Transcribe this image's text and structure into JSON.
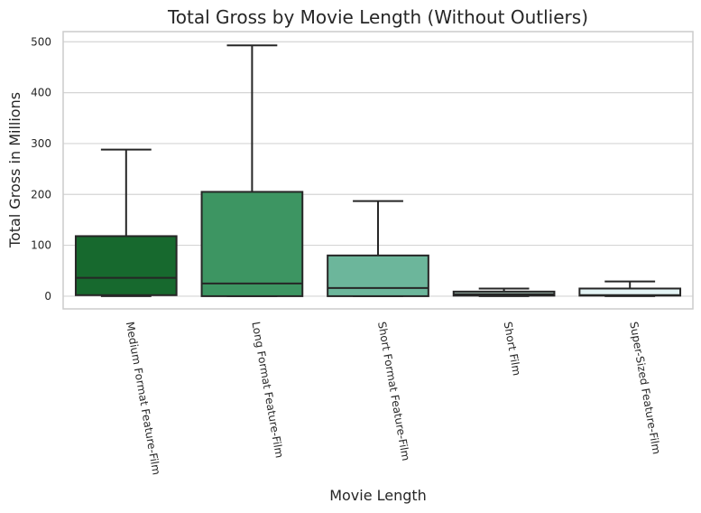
{
  "chart_data": {
    "type": "box",
    "title": "Total Gross by Movie Length (Without Outliers)",
    "xlabel": "Movie Length",
    "ylabel": "Total Gross in Millions",
    "ylim": [
      -25,
      520
    ],
    "yticks": [
      0,
      100,
      200,
      300,
      400,
      500
    ],
    "grid": true,
    "categories": [
      "Medium Format Feature-Film",
      "Long Format Feature-Film",
      "Short Format Feature-Film",
      "Short Film",
      "Super-Sized Feature-Film"
    ],
    "boxes": [
      {
        "category": "Medium Format Feature-Film",
        "whisker_low": 0,
        "q1": 2,
        "median": 36,
        "q3": 118,
        "whisker_high": 288,
        "color": "#17692e"
      },
      {
        "category": "Long Format Feature-Film",
        "whisker_low": 0,
        "q1": 0,
        "median": 25,
        "q3": 205,
        "whisker_high": 493,
        "color": "#3d9562"
      },
      {
        "category": "Short Format Feature-Film",
        "whisker_low": 0,
        "q1": 0,
        "median": 16,
        "q3": 80,
        "whisker_high": 187,
        "color": "#6cb69b"
      },
      {
        "category": "Short Film",
        "whisker_low": 0,
        "q1": 1,
        "median": 4,
        "q3": 9,
        "whisker_high": 15,
        "color": "#c0e2d4"
      },
      {
        "category": "Super-Sized Feature-Film",
        "whisker_low": 0,
        "q1": 1,
        "median": 2,
        "q3": 15,
        "whisker_high": 29,
        "color": "#e3f3f4"
      }
    ]
  }
}
